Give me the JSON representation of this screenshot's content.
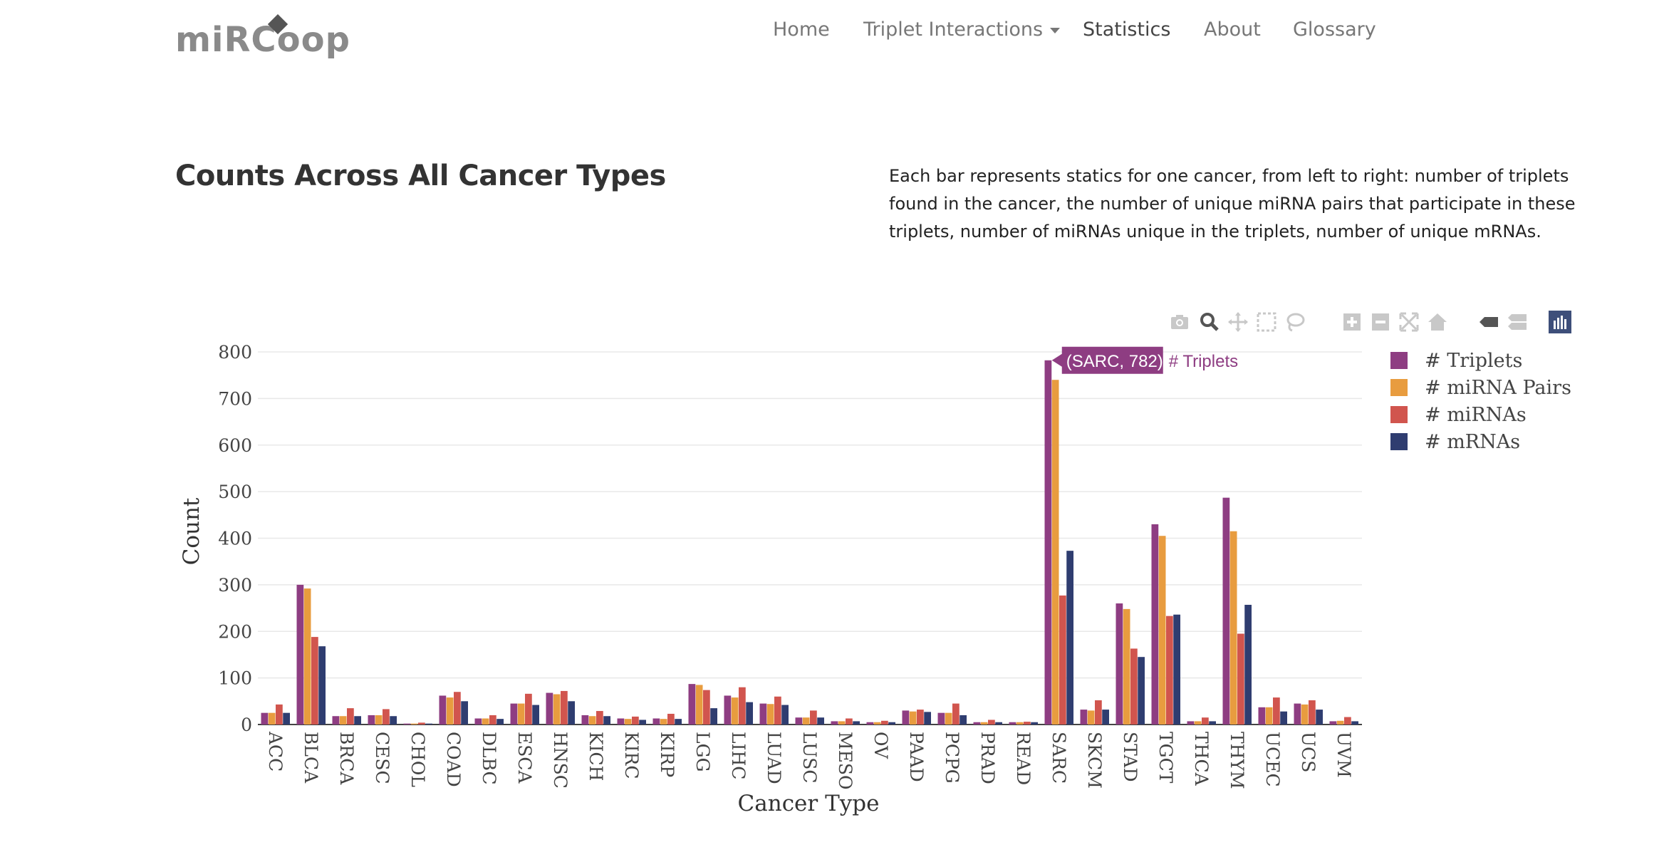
{
  "navbar": {
    "logo_text": "miRCoop",
    "items": [
      {
        "label": "Home",
        "active": false
      },
      {
        "label": "Triplet Interactions",
        "active": false,
        "dropdown": true
      },
      {
        "label": "Statistics",
        "active": true
      },
      {
        "label": "About",
        "active": false
      },
      {
        "label": "Glossary",
        "active": false
      }
    ]
  },
  "page": {
    "title": "Counts Across All Cancer Types",
    "description": "Each bar represents statics for one cancer, from left to right: number of triplets found in the cancer, the number of unique miRNA pairs that participate in these triplets, number of miRNAs unique in the triplets, number of unique mRNAs."
  },
  "modebar": [
    "camera-icon",
    "zoom-icon",
    "pan-icon",
    "box-select-icon",
    "lasso-icon",
    "zoom-in-icon",
    "zoom-out-icon",
    "autoscale-icon",
    "home-icon",
    "hover-closest-icon",
    "hover-compare-icon",
    "plotly-logo-icon"
  ],
  "tooltip": {
    "text": "(SARC, 782)",
    "series": "# Triplets"
  },
  "chart_data": {
    "type": "bar",
    "xlabel": "Cancer Type",
    "ylabel": "Count",
    "ylim": [
      0,
      800
    ],
    "yticks": [
      0,
      100,
      200,
      300,
      400,
      500,
      600,
      700,
      800
    ],
    "grid": true,
    "legend_position": "top-right",
    "categories": [
      "ACC",
      "BLCA",
      "BRCA",
      "CESC",
      "CHOL",
      "COAD",
      "DLBC",
      "ESCA",
      "HNSC",
      "KICH",
      "KIRC",
      "KIRP",
      "LGG",
      "LIHC",
      "LUAD",
      "LUSC",
      "MESO",
      "OV",
      "PAAD",
      "PCPG",
      "PRAD",
      "READ",
      "SARC",
      "SKCM",
      "STAD",
      "TGCT",
      "THCA",
      "THYM",
      "UCEC",
      "UCS",
      "UVM"
    ],
    "series": [
      {
        "name": "# Triplets",
        "color": "#8e3d82",
        "values": [
          25,
          300,
          18,
          20,
          2,
          62,
          13,
          45,
          68,
          20,
          13,
          13,
          87,
          62,
          45,
          15,
          7,
          5,
          30,
          25,
          5,
          5,
          782,
          32,
          260,
          430,
          7,
          487,
          37,
          45,
          7
        ]
      },
      {
        "name": "# miRNA Pairs",
        "color": "#e89c3f",
        "values": [
          25,
          292,
          18,
          20,
          2,
          58,
          13,
          45,
          65,
          18,
          12,
          12,
          85,
          58,
          44,
          15,
          7,
          5,
          28,
          25,
          5,
          5,
          740,
          30,
          248,
          405,
          7,
          415,
          37,
          43,
          8
        ]
      },
      {
        "name": "# miRNAs",
        "color": "#d1554e",
        "values": [
          43,
          188,
          35,
          33,
          4,
          70,
          20,
          66,
          72,
          29,
          17,
          23,
          74,
          80,
          60,
          30,
          13,
          8,
          32,
          45,
          10,
          6,
          277,
          52,
          163,
          233,
          15,
          195,
          58,
          52,
          16
        ]
      },
      {
        "name": "# mRNAs",
        "color": "#2f3d70",
        "values": [
          25,
          168,
          18,
          18,
          2,
          50,
          12,
          42,
          50,
          18,
          10,
          12,
          35,
          48,
          42,
          15,
          7,
          5,
          27,
          20,
          5,
          5,
          373,
          32,
          145,
          236,
          7,
          257,
          28,
          32,
          7
        ]
      }
    ]
  }
}
